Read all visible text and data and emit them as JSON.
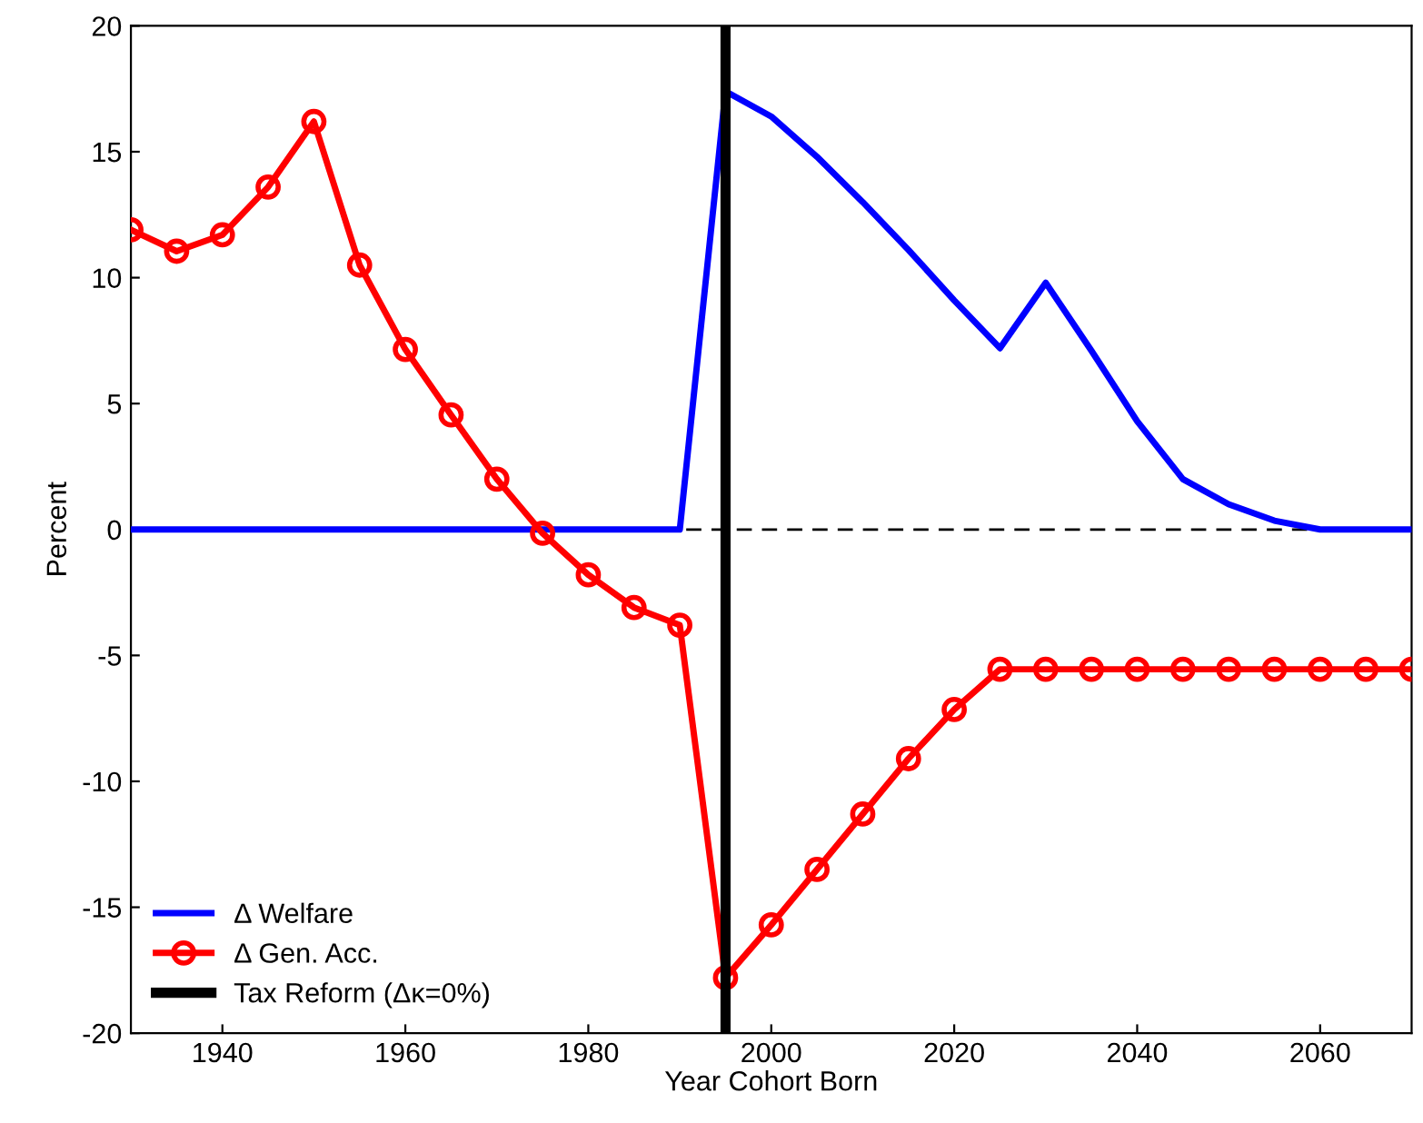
{
  "chart_data": {
    "type": "line",
    "xlabel": "Year Cohort Born",
    "ylabel": "Percent",
    "x": [
      1930,
      1935,
      1940,
      1945,
      1950,
      1955,
      1960,
      1965,
      1970,
      1975,
      1980,
      1985,
      1990,
      1995,
      2000,
      2005,
      2010,
      2015,
      2020,
      2025,
      2030,
      2035,
      2040,
      2045,
      2050,
      2055,
      2060,
      2065,
      2070
    ],
    "series": [
      {
        "name": "Δ Welfare",
        "color": "#0000ff",
        "marker": "none",
        "values": [
          0,
          0,
          0,
          0,
          0,
          0,
          0,
          0,
          0,
          0,
          0,
          0,
          0,
          17.4,
          16.4,
          14.8,
          13.0,
          11.1,
          9.1,
          7.2,
          9.8,
          7.1,
          4.3,
          2.0,
          1.0,
          0.35,
          0,
          0,
          0
        ]
      },
      {
        "name": "Δ Gen. Acc.",
        "color": "#ff0000",
        "marker": "circle",
        "values": [
          11.9,
          11.05,
          11.7,
          13.6,
          16.2,
          10.5,
          7.15,
          4.55,
          2.0,
          -0.15,
          -1.8,
          -3.1,
          -3.8,
          -17.8,
          -15.7,
          -13.5,
          -11.3,
          -9.1,
          -7.15,
          -5.55,
          -5.55,
          -5.55,
          -5.55,
          -5.55,
          -5.55,
          -5.55,
          -5.55,
          -5.55,
          -5.55
        ]
      },
      {
        "name": "Tax Reform (Δκ=0%)",
        "color": "#000000",
        "marker": "none",
        "x": [
          1995,
          1995
        ],
        "values": [
          -20,
          20
        ]
      }
    ],
    "ref_lines": [
      {
        "axis": "y",
        "value": 0,
        "color": "#000000",
        "line_style": "dashed"
      }
    ],
    "xlim": [
      1930,
      2070
    ],
    "ylim": [
      -20,
      20
    ],
    "xticks": [
      1940,
      1960,
      1980,
      2000,
      2020,
      2040,
      2060
    ],
    "yticks": [
      -20,
      -15,
      -10,
      -5,
      0,
      5,
      10,
      15,
      20
    ],
    "grid": false,
    "legend": "bottom left"
  }
}
